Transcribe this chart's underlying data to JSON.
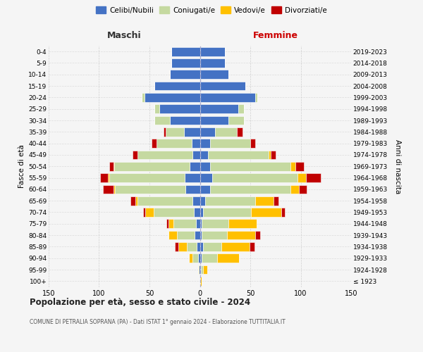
{
  "age_groups": [
    "100+",
    "95-99",
    "90-94",
    "85-89",
    "80-84",
    "75-79",
    "70-74",
    "65-69",
    "60-64",
    "55-59",
    "50-54",
    "45-49",
    "40-44",
    "35-39",
    "30-34",
    "25-29",
    "20-24",
    "15-19",
    "10-14",
    "5-9",
    "0-4"
  ],
  "birth_years": [
    "≤ 1923",
    "1924-1928",
    "1929-1933",
    "1934-1938",
    "1939-1943",
    "1944-1948",
    "1949-1953",
    "1954-1958",
    "1959-1963",
    "1964-1968",
    "1969-1973",
    "1974-1978",
    "1979-1983",
    "1984-1988",
    "1989-1993",
    "1994-1998",
    "1999-2003",
    "2004-2008",
    "2009-2013",
    "2014-2018",
    "2019-2023"
  ],
  "colors": {
    "celibi": "#4472c4",
    "coniugati": "#c5d9a0",
    "vedovi": "#ffc000",
    "divorziati": "#c00000"
  },
  "males": {
    "celibi": [
      0,
      1,
      2,
      3,
      5,
      4,
      6,
      7,
      14,
      15,
      10,
      7,
      8,
      16,
      30,
      40,
      55,
      45,
      30,
      28,
      28
    ],
    "coniugati": [
      0,
      0,
      5,
      10,
      18,
      22,
      40,
      55,
      70,
      75,
      75,
      55,
      35,
      18,
      15,
      5,
      3,
      0,
      0,
      0,
      0
    ],
    "vedovi": [
      0,
      1,
      4,
      8,
      8,
      5,
      8,
      2,
      2,
      1,
      1,
      0,
      0,
      0,
      0,
      0,
      0,
      0,
      0,
      0,
      0
    ],
    "divorziati": [
      0,
      0,
      0,
      4,
      0,
      2,
      2,
      5,
      10,
      8,
      4,
      5,
      5,
      2,
      0,
      0,
      0,
      0,
      0,
      0,
      0
    ]
  },
  "females": {
    "celibi": [
      0,
      1,
      2,
      3,
      2,
      2,
      3,
      5,
      10,
      12,
      10,
      8,
      10,
      15,
      28,
      38,
      55,
      45,
      28,
      25,
      25
    ],
    "coniugati": [
      0,
      2,
      15,
      18,
      25,
      26,
      48,
      50,
      80,
      85,
      80,
      60,
      40,
      22,
      16,
      6,
      2,
      0,
      0,
      0,
      0
    ],
    "vedovi": [
      2,
      4,
      22,
      28,
      28,
      28,
      30,
      18,
      8,
      8,
      5,
      2,
      0,
      0,
      0,
      0,
      0,
      0,
      0,
      0,
      0
    ],
    "divorziati": [
      0,
      0,
      0,
      5,
      5,
      0,
      3,
      5,
      8,
      15,
      8,
      5,
      5,
      5,
      0,
      0,
      0,
      0,
      0,
      0,
      0
    ]
  },
  "xlim": 150,
  "title": "Popolazione per età, sesso e stato civile - 2024",
  "subtitle": "COMUNE DI PETRALIA SOPRANA (PA) - Dati ISTAT 1° gennaio 2024 - Elaborazione TUTTITALIA.IT",
  "ylabel_left": "Fasce di età",
  "ylabel_right": "Anni di nascita",
  "xlabel_maschi": "Maschi",
  "xlabel_femmine": "Femmine",
  "bg_color": "#f5f5f5",
  "grid_color": "#cccccc"
}
